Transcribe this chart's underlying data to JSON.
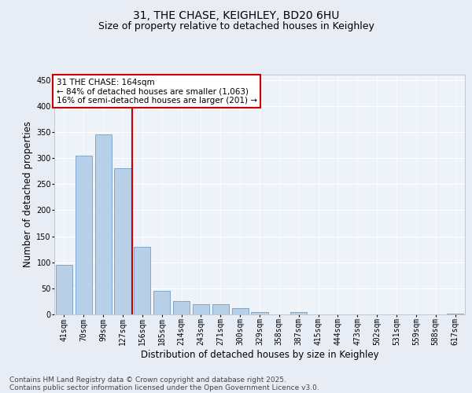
{
  "title1": "31, THE CHASE, KEIGHLEY, BD20 6HU",
  "title2": "Size of property relative to detached houses in Keighley",
  "xlabel": "Distribution of detached houses by size in Keighley",
  "ylabel": "Number of detached properties",
  "categories": [
    "41sqm",
    "70sqm",
    "99sqm",
    "127sqm",
    "156sqm",
    "185sqm",
    "214sqm",
    "243sqm",
    "271sqm",
    "300sqm",
    "329sqm",
    "358sqm",
    "387sqm",
    "415sqm",
    "444sqm",
    "473sqm",
    "502sqm",
    "531sqm",
    "559sqm",
    "588sqm",
    "617sqm"
  ],
  "values": [
    95,
    305,
    345,
    280,
    130,
    45,
    25,
    20,
    20,
    12,
    5,
    0,
    5,
    0,
    0,
    0,
    0,
    0,
    0,
    0,
    2
  ],
  "bar_color": "#b8cfe8",
  "bar_edge_color": "#6090c0",
  "vline_x": 3.5,
  "annotation_text_line1": "31 THE CHASE: 164sqm",
  "annotation_text_line2": "← 84% of detached houses are smaller (1,063)",
  "annotation_text_line3": "16% of semi-detached houses are larger (201) →",
  "annotation_box_facecolor": "#ffffff",
  "annotation_box_edgecolor": "#cc0000",
  "vline_color": "#cc0000",
  "footer1": "Contains HM Land Registry data © Crown copyright and database right 2025.",
  "footer2": "Contains public sector information licensed under the Open Government Licence v3.0.",
  "ylim": [
    0,
    460
  ],
  "yticks": [
    0,
    50,
    100,
    150,
    200,
    250,
    300,
    350,
    400,
    450
  ],
  "bg_color": "#e8edf5",
  "plot_bg_color": "#eef2f9",
  "grid_color": "#ffffff",
  "title_fontsize": 10,
  "subtitle_fontsize": 9,
  "axis_label_fontsize": 8.5,
  "tick_fontsize": 7,
  "annotation_fontsize": 7.5,
  "footer_fontsize": 6.5
}
